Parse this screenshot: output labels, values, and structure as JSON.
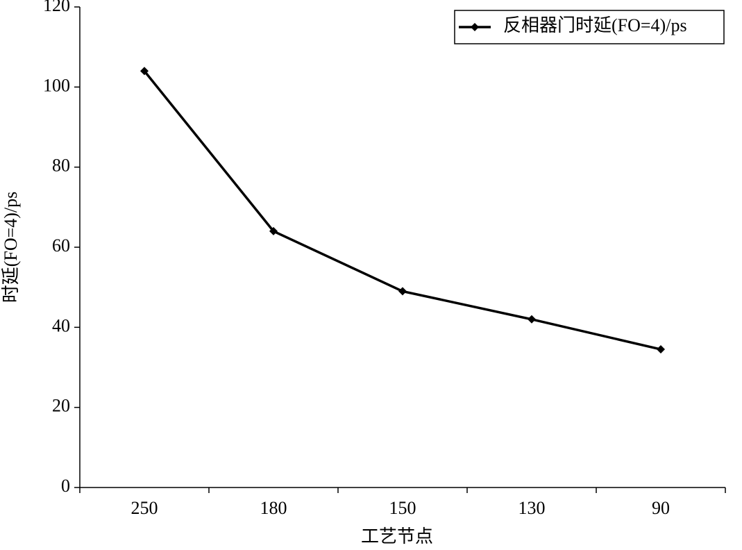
{
  "chart_data": {
    "type": "line",
    "x_label": "工艺节点",
    "y_label": "时延(FO=4)/ps",
    "categories": [
      "250",
      "180",
      "150",
      "130",
      "90"
    ],
    "series": [
      {
        "name": "反相器门时延(FO=4)/ps",
        "color": "#000000",
        "values": [
          104,
          64,
          49,
          42,
          34.5
        ]
      }
    ],
    "ylim": [
      0,
      120
    ],
    "yticks": [
      0,
      20,
      40,
      60,
      80,
      100,
      120
    ],
    "grid": false,
    "legend": "top-right"
  }
}
